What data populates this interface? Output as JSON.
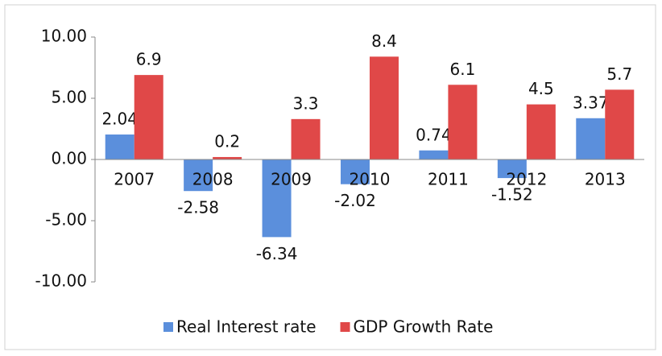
{
  "chart_data": {
    "type": "bar",
    "categories": [
      "2007",
      "2008",
      "2009",
      "2010",
      "2011",
      "2012",
      "2013"
    ],
    "series": [
      {
        "name": "Real Interest rate",
        "color": "#5b8fdc",
        "values": [
          2.04,
          -2.58,
          -6.34,
          -2.02,
          0.74,
          -1.52,
          3.37
        ]
      },
      {
        "name": "GDP Growth Rate",
        "color": "#e04848",
        "values": [
          6.9,
          0.2,
          3.3,
          8.4,
          6.1,
          4.5,
          5.7
        ]
      }
    ],
    "ylim": [
      -10,
      10
    ],
    "yticks": [
      {
        "value": -10,
        "label": "-10.00"
      },
      {
        "value": -5,
        "label": "-5.00"
      },
      {
        "value": 0,
        "label": "0.00"
      },
      {
        "value": 5,
        "label": "5.00"
      },
      {
        "value": 10,
        "label": "10.00"
      }
    ],
    "grid": false,
    "legend": "bottom"
  }
}
